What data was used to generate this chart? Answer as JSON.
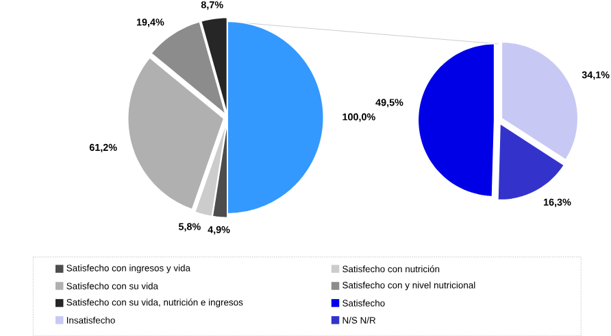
{
  "chart_data": [
    {
      "type": "pie",
      "categories": [
        null,
        "Satisfecho con ingresos y vida",
        "Satisfecho con nutrición",
        "Satisfecho con su vida",
        "Satisfecho con y nivel nutricional",
        "Satisfecho con su vida, nutrición e ingresos"
      ],
      "values": [
        100.0,
        4.9,
        5.8,
        61.2,
        19.4,
        8.7
      ],
      "value_labels": [
        "100,0%",
        "4,9%",
        "5,8%",
        "61,2%",
        "19,4%",
        "8,7%"
      ],
      "colors": [
        "#3399ff",
        "#4d4d4d",
        "#cccccc",
        "#b0b0b0",
        "#8c8c8c",
        "#262626"
      ],
      "legend": "bottom"
    },
    {
      "type": "pie",
      "categories": [
        "Satisfecho",
        "Insatisfecho",
        "N/S N/R"
      ],
      "values": [
        49.5,
        34.1,
        16.3
      ],
      "value_labels": [
        "49,5%",
        "34,1%",
        "16,3%"
      ],
      "colors": [
        "#0000e6",
        "#c8c8f5",
        "#3333cc"
      ],
      "legend": "bottom"
    }
  ]
}
